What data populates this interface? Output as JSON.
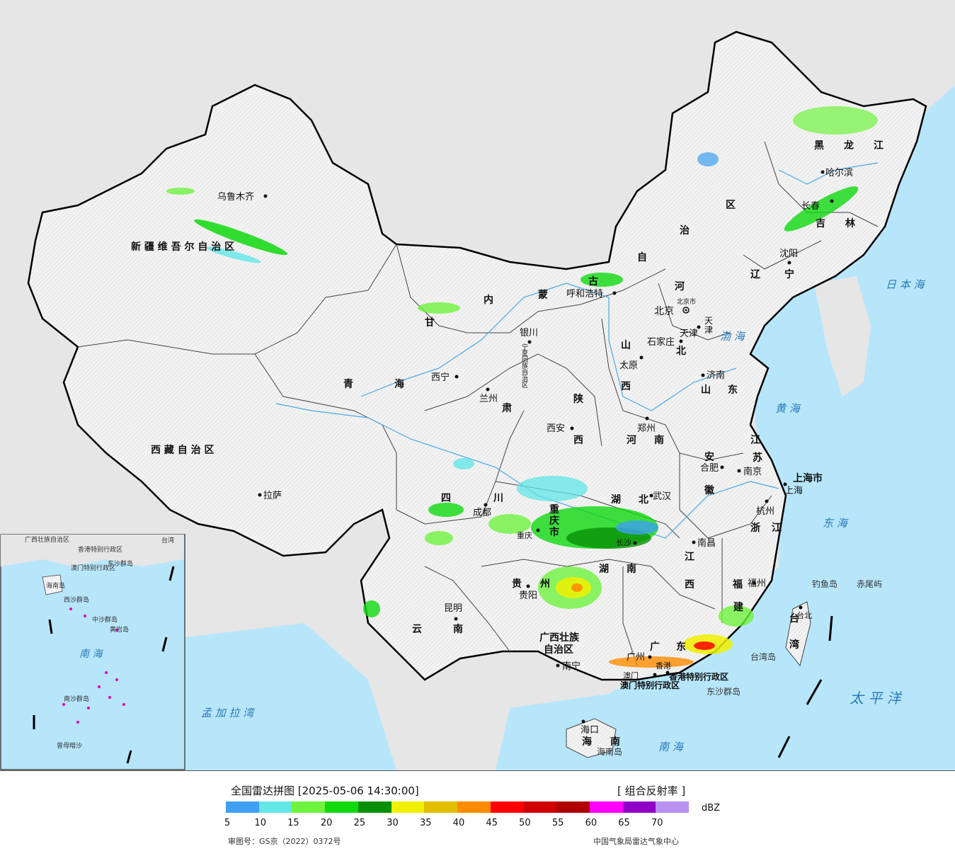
{
  "map": {
    "provinces": [
      {
        "label": "新 疆 维 吾 尔 自 治 区"
      },
      {
        "label": "西 藏 自 治 区"
      },
      {
        "label": "青"
      },
      {
        "label": "海"
      },
      {
        "label": "甘"
      },
      {
        "label": "肃"
      },
      {
        "label": "内"
      },
      {
        "label": "蒙"
      },
      {
        "label": "古"
      },
      {
        "label": "自"
      },
      {
        "label": "治"
      },
      {
        "label": "区"
      },
      {
        "label": "黑"
      },
      {
        "label": "龙"
      },
      {
        "label": "江"
      },
      {
        "label": "吉"
      },
      {
        "label": "林"
      },
      {
        "label": "辽"
      },
      {
        "label": "宁"
      },
      {
        "label": "河"
      },
      {
        "label": "北"
      },
      {
        "label": "山"
      },
      {
        "label": "西"
      },
      {
        "label": "山"
      },
      {
        "label": "东"
      },
      {
        "label": "陕"
      },
      {
        "label": "西"
      },
      {
        "label": "河"
      },
      {
        "label": "南"
      },
      {
        "label": "安"
      },
      {
        "label": "徽"
      },
      {
        "label": "江"
      },
      {
        "label": "苏"
      },
      {
        "label": "浙"
      },
      {
        "label": "江"
      },
      {
        "label": "湖"
      },
      {
        "label": "北"
      },
      {
        "label": "湖"
      },
      {
        "label": "南"
      },
      {
        "label": "江"
      },
      {
        "label": "西"
      },
      {
        "label": "福"
      },
      {
        "label": "建"
      },
      {
        "label": "广"
      },
      {
        "label": "东"
      },
      {
        "label": "四"
      },
      {
        "label": "川"
      },
      {
        "label": "贵"
      },
      {
        "label": "州"
      },
      {
        "label": "云"
      },
      {
        "label": "南"
      },
      {
        "label": "重"
      },
      {
        "label": "庆"
      },
      {
        "label": "市"
      },
      {
        "label": "广西壮族"
      },
      {
        "label": "自治区"
      },
      {
        "label": "台"
      },
      {
        "label": "湾"
      },
      {
        "label": "海"
      },
      {
        "label": "南"
      },
      {
        "label": "上海市"
      },
      {
        "label": "北京市"
      },
      {
        "label": "天"
      },
      {
        "label": "津"
      },
      {
        "label": "宁夏回族自治区"
      },
      {
        "label": "香港特别行政区"
      },
      {
        "label": "澳门特别行政区"
      }
    ],
    "cities": [
      "乌鲁木齐",
      "拉萨",
      "西宁",
      "兰州",
      "银川",
      "呼和浩特",
      "北京",
      "天津",
      "石家庄",
      "太原",
      "济南",
      "郑州",
      "西安",
      "合肥",
      "南京",
      "上海",
      "杭州",
      "武汉",
      "长沙",
      "南昌",
      "福州",
      "台北",
      "成都",
      "重庆",
      "贵阳",
      "昆明",
      "南宁",
      "广州",
      "香港",
      "澳门",
      "海口",
      "沈阳",
      "长春",
      "哈尔滨"
    ],
    "seas": [
      "日 本 海",
      "渤 海",
      "黄 海",
      "东 海",
      "太 平 洋",
      "南 海",
      "孟 加 拉 湾"
    ],
    "islands": [
      "钓鱼岛",
      "赤尾屿",
      "东沙群岛",
      "台湾岛",
      "海南岛"
    ],
    "inset": {
      "sea_label": "南 海",
      "islands": [
        "东沙群岛",
        "西沙群岛",
        "中沙群岛",
        "黄岩岛",
        "南沙群岛",
        "曾母暗沙"
      ],
      "regions": [
        "广西壮族自治区",
        "香港特别行政区",
        "澳门特别行政区",
        "海南岛",
        "台湾"
      ]
    }
  },
  "legend": {
    "title": "全国雷达拼图 [2025-05-06 14:30:00]",
    "product": "[ 组合反射率 ]",
    "unit": "dBZ",
    "ticks": [
      "5",
      "10",
      "15",
      "20",
      "25",
      "30",
      "35",
      "40",
      "45",
      "50",
      "55",
      "60",
      "65",
      "70"
    ],
    "colors": [
      "#3f9ff0",
      "#63e6e6",
      "#6ff33f",
      "#0fd80f",
      "#079007",
      "#f0f000",
      "#e2be00",
      "#ff8c00",
      "#ff0000",
      "#d00000",
      "#b00000",
      "#ff00ff",
      "#9000c8",
      "#b890f0"
    ],
    "map_number": "审图号：GS京（2022）0372号",
    "source": "中国气象局雷达气象中心"
  }
}
